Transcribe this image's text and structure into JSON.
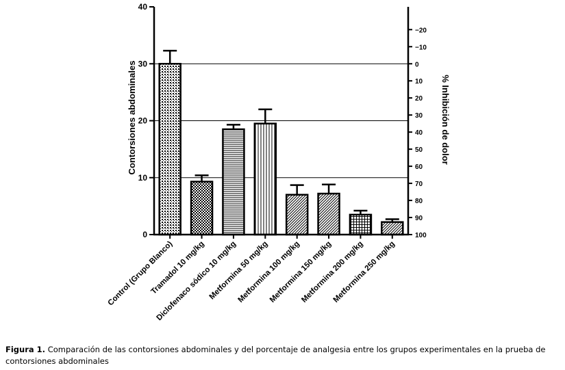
{
  "chart_data": {
    "type": "bar",
    "categories": [
      "Control (Grupo Blanco)",
      "Tramadol 10 mg/kg",
      "Diclofenaco sódico 10 mg/kg",
      "Metformina 50 mg/kg",
      "Metformina 100 mg/kg",
      "Metformina 150 mg/kg",
      "Metformina 200 mg/kg",
      "Metformina 250 mg/kg"
    ],
    "values": [
      30,
      9.3,
      18.5,
      19.5,
      7.0,
      7.2,
      3.5,
      2.2
    ],
    "errors": [
      2.3,
      1.1,
      0.8,
      2.5,
      1.7,
      1.6,
      0.7,
      0.5
    ],
    "patterns": [
      "cross-dots",
      "checker",
      "horizontal-lines",
      "vertical-lines",
      "diagonal",
      "diagonal",
      "grid",
      "diagonal"
    ],
    "ylabel": "Contorsiones abdominales",
    "ylim": [
      0,
      40
    ],
    "yticks": [
      0,
      10,
      20,
      30,
      40
    ],
    "y2label": "% Inhibición de dolor",
    "y2ticks": [
      -20,
      -10,
      0,
      10,
      20,
      30,
      40,
      50,
      60,
      70,
      80,
      90,
      100
    ],
    "y2tick_labels": [
      "−20",
      "−10",
      "0",
      "10",
      "20",
      "30",
      "40",
      "50",
      "60",
      "70",
      "80",
      "90",
      "100"
    ],
    "gridlines_y": [
      10,
      20,
      30
    ],
    "grid": "horizontal at 10, 20, 30",
    "colors": {
      "axis": "#000000",
      "bar_fill": "#ffffff",
      "pattern": "#000000"
    }
  },
  "caption": {
    "label": "Figura 1.",
    "text": "Comparación de las contorsiones abdominales y del porcentaje de analgesia entre los grupos experimentales en la prueba de contorsiones abdominales"
  }
}
